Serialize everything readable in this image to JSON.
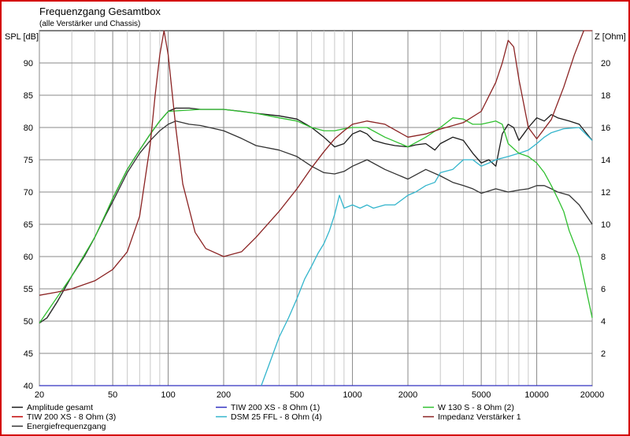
{
  "chart_data": {
    "type": "line",
    "title": "Frequenzgang Gesamtbox",
    "subtitle": "(alle Verstärker und Chassis)",
    "ylabel_left": "SPL [dB]",
    "ylabel_right": "Z [Ohm]",
    "x_scale": "log",
    "xlim": [
      20,
      20000
    ],
    "ylim_left": [
      40,
      95
    ],
    "ylim_right": [
      0,
      22
    ],
    "grid": true,
    "legend_placement": "bottom",
    "x_ticks": [
      20,
      50,
      100,
      200,
      500,
      1000,
      2000,
      5000,
      10000,
      20000
    ],
    "x_tick_labels": [
      "20",
      "50",
      "100",
      "200",
      "500",
      "1000",
      "2000",
      "5000",
      "10000",
      "20000"
    ],
    "y_left_ticks": [
      40,
      45,
      50,
      55,
      60,
      65,
      70,
      75,
      80,
      85,
      90
    ],
    "y_right_ticks": [
      2,
      4,
      6,
      8,
      10,
      12,
      14,
      16,
      18,
      20
    ],
    "series": [
      {
        "name": "Amplitude gesamt",
        "color": "#1a1a1a",
        "axis": "left",
        "x": [
          20,
          22,
          25,
          30,
          35,
          40,
          45,
          50,
          60,
          70,
          80,
          90,
          100,
          110,
          130,
          150,
          200,
          250,
          300,
          400,
          500,
          600,
          700,
          800,
          900,
          1000,
          1100,
          1200,
          1300,
          1500,
          1700,
          2000,
          2200,
          2500,
          2800,
          3000,
          3500,
          4000,
          4500,
          5000,
          5500,
          6000,
          6500,
          7000,
          7500,
          8000,
          8500,
          9000,
          10000,
          11000,
          12000,
          13000,
          15000,
          17000,
          20000
        ],
        "y": [
          49.7,
          50.5,
          53,
          57,
          60,
          63,
          66,
          69,
          73.5,
          76.5,
          79,
          81,
          82.5,
          83,
          83,
          82.8,
          82.8,
          82.5,
          82.2,
          81.8,
          81.3,
          80,
          78.5,
          77,
          77.5,
          79,
          79.5,
          79,
          78,
          77.5,
          77.2,
          77,
          77.3,
          77.5,
          76.5,
          77.5,
          78.5,
          78,
          76,
          74.5,
          75,
          74,
          79,
          80.5,
          80,
          78,
          79,
          80,
          81.5,
          81,
          82,
          81.5,
          81,
          80.5,
          78
        ]
      },
      {
        "name": "TIW 200 XS - 8 Ohm (3)",
        "color": "#c00000",
        "axis": "left",
        "x": [
          20
        ],
        "y": [
          40
        ]
      },
      {
        "name": "Energiefrequenzgang",
        "color": "#333333",
        "axis": "left",
        "x": [
          20,
          22,
          25,
          30,
          35,
          40,
          45,
          50,
          60,
          70,
          80,
          90,
          100,
          110,
          130,
          150,
          200,
          250,
          300,
          400,
          500,
          600,
          700,
          800,
          900,
          1000,
          1200,
          1500,
          2000,
          2500,
          3000,
          3500,
          4000,
          4500,
          5000,
          6000,
          7000,
          8000,
          9000,
          10000,
          11000,
          12000,
          13000,
          15000,
          17000,
          20000
        ],
        "y": [
          49.7,
          50.5,
          53,
          57,
          60,
          63,
          66,
          68.5,
          73,
          76,
          78,
          79.5,
          80.5,
          81,
          80.5,
          80.3,
          79.5,
          78.3,
          77.2,
          76.5,
          75.5,
          74,
          73,
          72.8,
          73.2,
          74,
          75,
          73.5,
          72,
          73.5,
          72.5,
          71.5,
          71,
          70.5,
          69.8,
          70.5,
          70,
          70.3,
          70.5,
          71,
          71,
          70.5,
          70,
          69.5,
          68,
          65
        ]
      },
      {
        "name": "TIW 200 XS - 8 Ohm (1)",
        "color": "#3030c0",
        "axis": "left",
        "x": [
          20,
          20000
        ],
        "y": [
          40,
          40
        ]
      },
      {
        "name": "DSM 25 FFL - 8 Ohm (4)",
        "color": "#33b5cc",
        "axis": "left",
        "x": [
          320,
          350,
          400,
          450,
          500,
          550,
          600,
          650,
          700,
          750,
          800,
          850,
          900,
          1000,
          1100,
          1200,
          1300,
          1500,
          1700,
          2000,
          2200,
          2500,
          2800,
          3000,
          3500,
          4000,
          4500,
          5000,
          5500,
          6000,
          7000,
          8000,
          9000,
          10000,
          11000,
          12000,
          14000,
          17000,
          20000
        ],
        "y": [
          40,
          43,
          47.5,
          50.5,
          53.5,
          56.5,
          58.5,
          60.5,
          62,
          64,
          66.5,
          69.5,
          67.5,
          68,
          67.5,
          68,
          67.5,
          68,
          68,
          69.5,
          70,
          71,
          71.5,
          73,
          73.5,
          75,
          75,
          74,
          74.5,
          75,
          75.5,
          76,
          76.5,
          77.5,
          78.5,
          79.2,
          79.8,
          80,
          78
        ]
      },
      {
        "name": "W 130 S - 8 Ohm (2)",
        "color": "#30c030",
        "axis": "left",
        "x": [
          20,
          30,
          40,
          50,
          60,
          70,
          80,
          90,
          100,
          150,
          200,
          300,
          400,
          500,
          600,
          700,
          800,
          900,
          1000,
          1200,
          1500,
          2000,
          2500,
          3000,
          3500,
          4000,
          4500,
          5000,
          6000,
          6500,
          7000,
          8000,
          9000,
          10000,
          11000,
          12000,
          13000,
          14000,
          15000,
          17000,
          20000
        ],
        "y": [
          49.7,
          57,
          63,
          69,
          73.5,
          76.5,
          79,
          81,
          82.5,
          82.8,
          82.8,
          82.2,
          81.5,
          81,
          80,
          79.5,
          79.5,
          79.8,
          80,
          80,
          78.5,
          77,
          78.5,
          80,
          81.5,
          81.3,
          80.5,
          80.5,
          81,
          80.5,
          77.5,
          76,
          75.5,
          74.5,
          73,
          71,
          69,
          67,
          64,
          60,
          50.5
        ]
      },
      {
        "name": "Impedanz Verstärker 1",
        "color": "#8b2323",
        "axis": "right",
        "x": [
          20,
          25,
          30,
          40,
          50,
          60,
          70,
          80,
          85,
          90,
          95,
          100,
          110,
          120,
          140,
          160,
          200,
          250,
          300,
          400,
          500,
          600,
          700,
          800,
          900,
          1000,
          1200,
          1500,
          2000,
          2500,
          3000,
          4000,
          5000,
          6000,
          6500,
          7000,
          7500,
          8000,
          9000,
          10000,
          12000,
          14000,
          16000,
          18000,
          20000
        ],
        "y": [
          5.6,
          5.8,
          6.0,
          6.5,
          7.2,
          8.3,
          10.5,
          15,
          18,
          20.5,
          22,
          20.5,
          16,
          12.5,
          9.5,
          8.5,
          8.0,
          8.3,
          9.2,
          10.8,
          12.2,
          13.5,
          14.5,
          15.3,
          15.8,
          16.2,
          16.4,
          16.2,
          15.4,
          15.6,
          15.9,
          16.3,
          17,
          18.8,
          20,
          21.4,
          21,
          19,
          16,
          15.3,
          16.5,
          18.5,
          20.5,
          22,
          22
        ]
      }
    ],
    "legend": [
      {
        "label": "Amplitude gesamt",
        "color": "#1a1a1a"
      },
      {
        "label": "TIW 200 XS - 8 Ohm (1)",
        "color": "#3030c0"
      },
      {
        "label": "W 130 S - 8 Ohm (2)",
        "color": "#30c030"
      },
      {
        "label": "TIW 200 XS - 8 Ohm (3)",
        "color": "#c00000"
      },
      {
        "label": "DSM 25 FFL - 8 Ohm (4)",
        "color": "#33b5cc"
      },
      {
        "label": "Impedanz Verstärker 1",
        "color": "#8b2323"
      },
      {
        "label": "Energiefrequenzgang",
        "color": "#333333"
      }
    ]
  }
}
